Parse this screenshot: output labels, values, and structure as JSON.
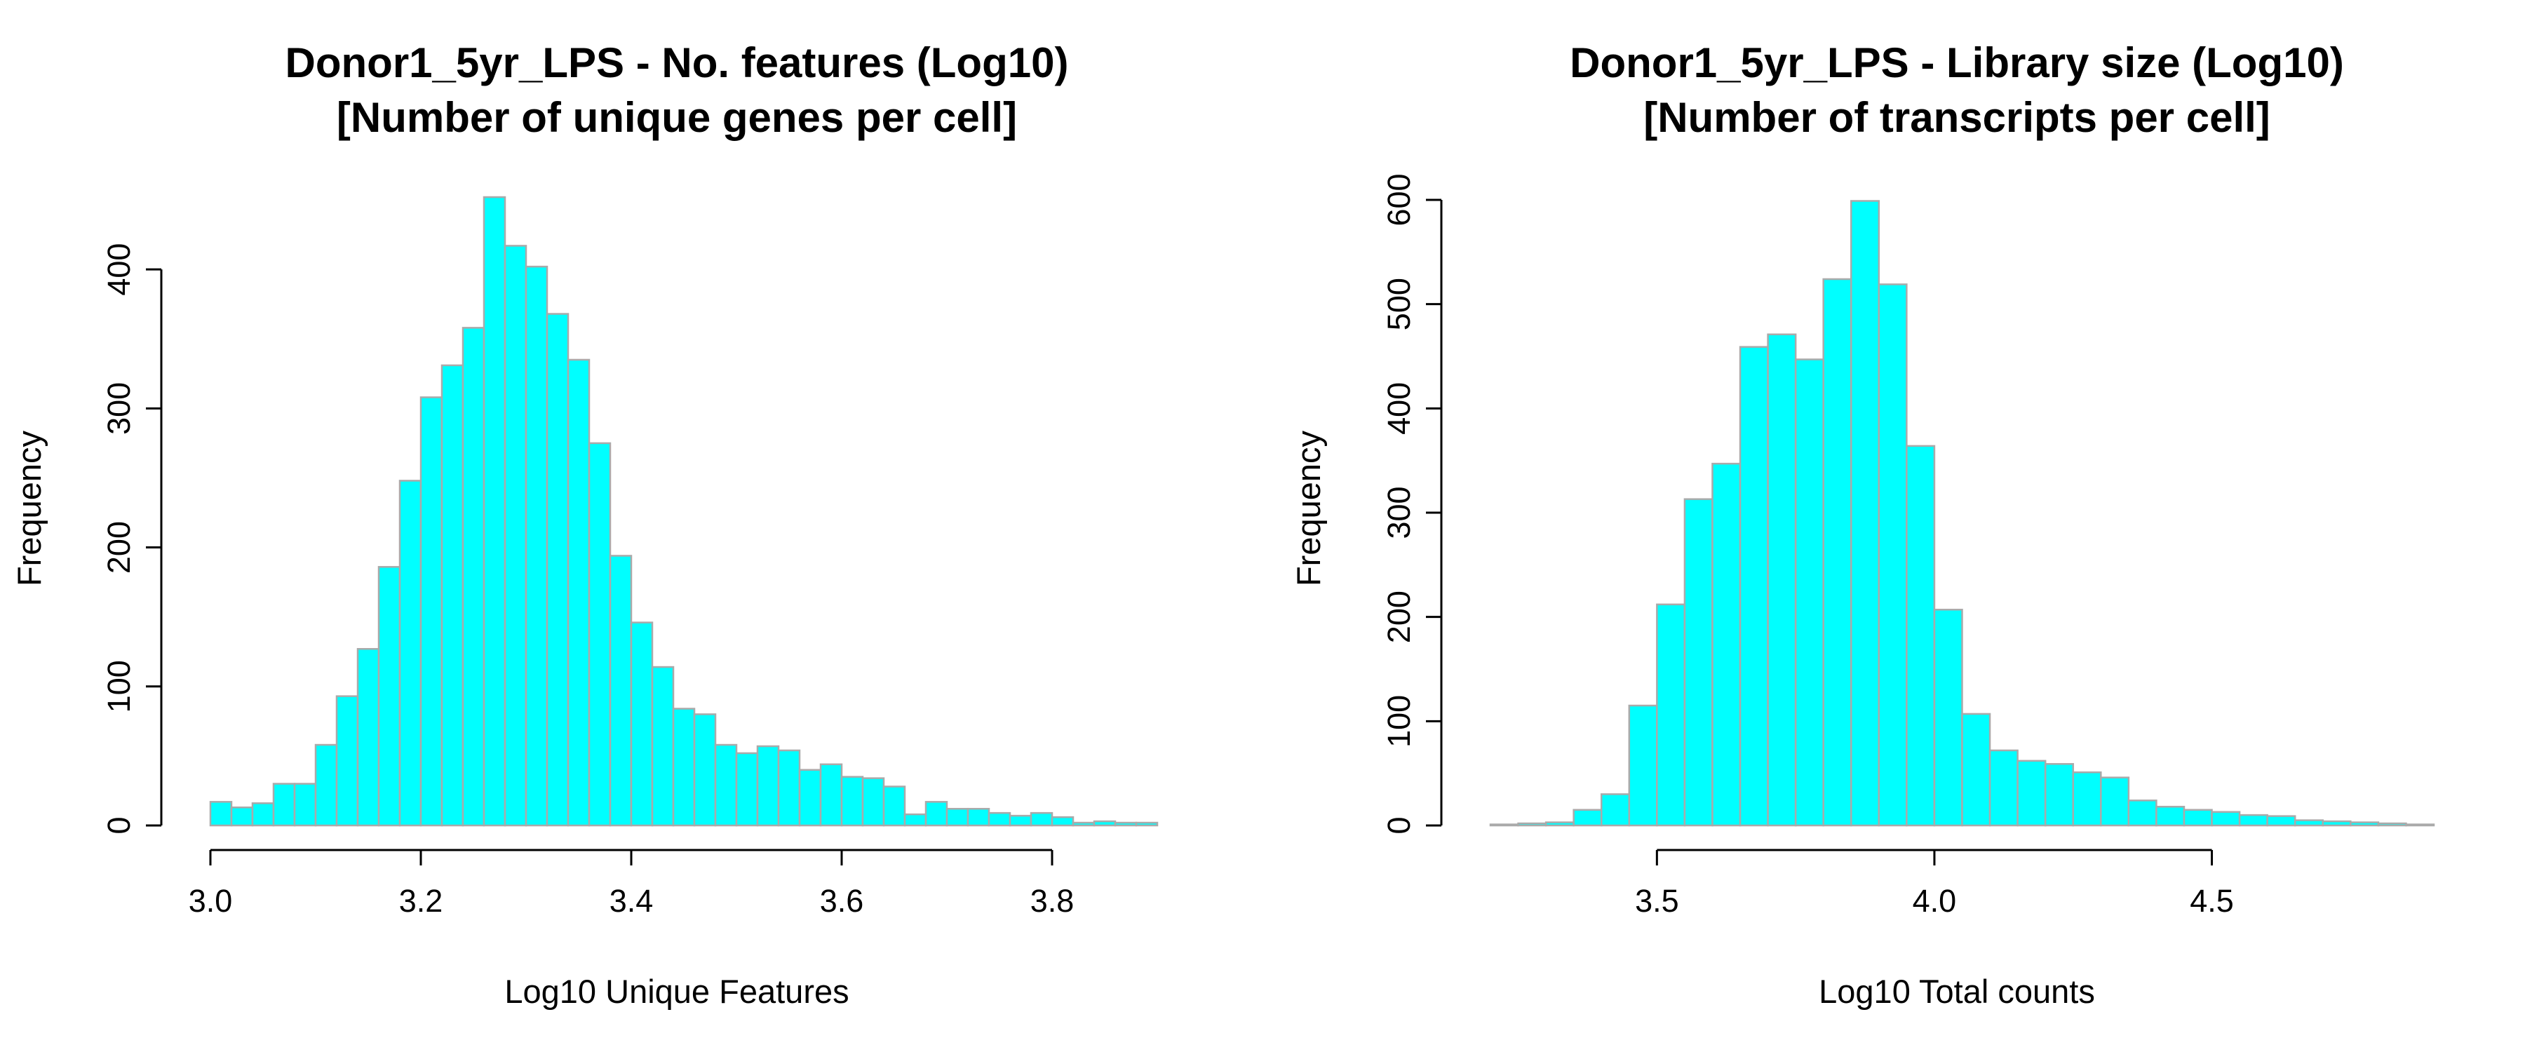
{
  "chart_data": [
    {
      "type": "bar",
      "title_line1": "Donor1_5yr_LPS - No. features (Log10)",
      "title_line2": "[Number of unique genes per cell]",
      "xlabel": "Log10 Unique Features",
      "ylabel": "Frequency",
      "xlim": [
        3.0,
        3.9
      ],
      "ylim": [
        0,
        450
      ],
      "x_ticks": [
        3.0,
        3.2,
        3.4,
        3.6,
        3.8
      ],
      "x_tick_labels": [
        "3.0",
        "3.2",
        "3.4",
        "3.6",
        "3.8"
      ],
      "y_ticks": [
        0,
        100,
        200,
        300,
        400
      ],
      "y_tick_labels": [
        "0",
        "100",
        "200",
        "300",
        "400"
      ],
      "bin_start": 3.0,
      "bin_width": 0.02,
      "values": [
        17,
        13,
        16,
        30,
        30,
        58,
        93,
        127,
        186,
        248,
        308,
        331,
        358,
        452,
        417,
        402,
        368,
        335,
        275,
        194,
        146,
        114,
        84,
        80,
        58,
        52,
        57,
        54,
        40,
        44,
        35,
        34,
        28,
        8,
        17,
        12,
        12,
        9,
        7,
        9,
        6,
        2,
        3,
        2,
        2
      ],
      "bar_color": "#00ffff",
      "bar_border_color": "#aaaaaa"
    },
    {
      "type": "bar",
      "title_line1": "Donor1_5yr_LPS - Library size (Log10)",
      "title_line2": "[Number of transcripts per cell]",
      "xlabel": "Log10 Total counts",
      "ylabel": "Frequency",
      "xlim": [
        3.2,
        4.9
      ],
      "ylim": [
        0,
        600
      ],
      "x_ticks": [
        3.5,
        4.0,
        4.5
      ],
      "x_tick_labels": [
        "3.5",
        "4.0",
        "4.5"
      ],
      "y_ticks": [
        0,
        100,
        200,
        300,
        400,
        500,
        600
      ],
      "y_tick_labels": [
        "0",
        "100",
        "200",
        "300",
        "400",
        "500",
        "600"
      ],
      "bin_start": 3.2,
      "bin_width": 0.05,
      "values": [
        1,
        2,
        3,
        15,
        30,
        115,
        212,
        313,
        347,
        459,
        471,
        447,
        524,
        599,
        519,
        364,
        207,
        107,
        72,
        62,
        59,
        51,
        46,
        24,
        18,
        15,
        13,
        10,
        9,
        5,
        4,
        3,
        2,
        1
      ],
      "bar_color": "#00ffff",
      "bar_border_color": "#aaaaaa"
    }
  ]
}
